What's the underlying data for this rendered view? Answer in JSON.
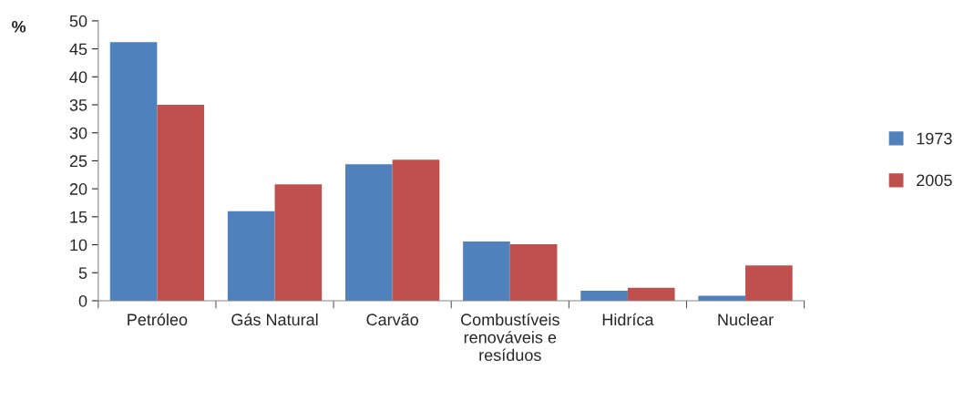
{
  "chart_data": {
    "type": "bar",
    "categories": [
      "Petróleo",
      "Gás Natural",
      "Carvão",
      "Combustíveis\nrenováveis e\nresíduos",
      "Hidríca",
      "Nuclear"
    ],
    "series": [
      {
        "name": "1973",
        "color": "#4f81bd",
        "values": [
          46.2,
          16.0,
          24.4,
          10.6,
          1.8,
          0.9
        ]
      },
      {
        "name": "2005",
        "color": "#c0504d",
        "values": [
          35.0,
          20.8,
          25.2,
          10.1,
          2.3,
          6.3
        ]
      }
    ],
    "ylabel": "%",
    "ylim": [
      0,
      50
    ],
    "yticks": [
      0,
      5,
      10,
      15,
      20,
      25,
      30,
      35,
      40,
      45,
      50
    ],
    "grid": false,
    "legend": "right"
  }
}
